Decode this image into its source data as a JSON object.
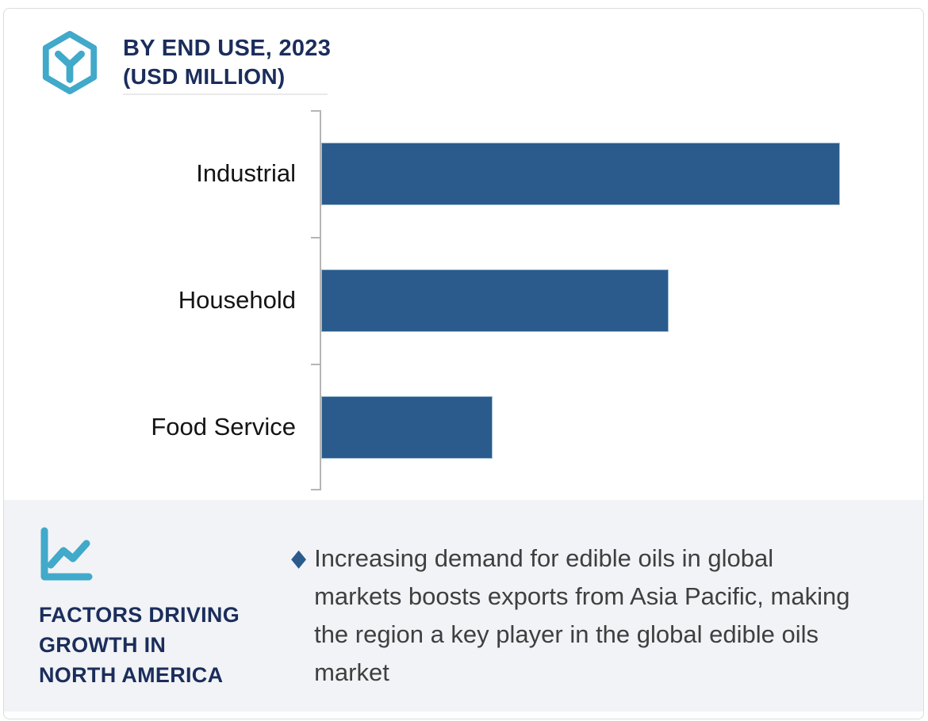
{
  "header": {
    "title_line1": "BY END USE, 2023",
    "title_line2": "(USD MILLION)",
    "logo_icon": "hexagon-y-logo-icon"
  },
  "chart_data": {
    "type": "bar",
    "orientation": "horizontal",
    "title": "BY END USE, 2023 (USD MILLION)",
    "categories": [
      "Industrial",
      "Household",
      "Food Service"
    ],
    "values_relative_pct_of_max": [
      100,
      67,
      33
    ],
    "value_axis_tick_labels": "none shown",
    "data_labels_shown": false,
    "gridlines": false,
    "legend": "none",
    "bar_color": "#2a5b8c"
  },
  "factors_panel": {
    "icon": "line-chart-icon",
    "heading_line1": "FACTORS DRIVING",
    "heading_line2": "GROWTH IN",
    "heading_line3": "NORTH AMERICA",
    "bullet_marker": "◆",
    "bullet_text": "Increasing demand for edible oils in global markets boosts exports from Asia Pacific, making the region a key player in the global edible oils market"
  },
  "colors": {
    "accent_teal": "#41a9c9",
    "navy": "#1b2d5b",
    "bar_blue": "#2a5b8c",
    "panel_bg": "#f1f3f6",
    "body_text": "#3f3f3f"
  }
}
